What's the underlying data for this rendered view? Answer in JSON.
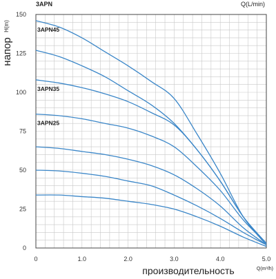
{
  "chart_data": {
    "type": "line",
    "title": "3APN",
    "x_unit_label_top": "Q(L/min)",
    "xlabel": "производительность",
    "x_unit_label": "Q(m³/h)",
    "ylabel": "напор",
    "y_unit_label": "H(m)",
    "xlim": [
      0,
      5
    ],
    "ylim": [
      0,
      150
    ],
    "x_ticks": [
      "0",
      "1.0",
      "2.0",
      "3.0",
      "4.0",
      "5.0"
    ],
    "y_ticks": [
      "0",
      "25",
      "50",
      "75",
      "100",
      "125",
      "150"
    ],
    "grid": true,
    "series_color": "#3a86c8",
    "axis_color": "#444444",
    "grid_color": "#c8c8c8",
    "series": [
      {
        "name": "3APN45",
        "points": [
          [
            0,
            146
          ],
          [
            0.5,
            142
          ],
          [
            1.0,
            135
          ],
          [
            1.5,
            126
          ],
          [
            2.0,
            117
          ],
          [
            2.5,
            107
          ],
          [
            3.0,
            96
          ],
          [
            3.5,
            73
          ],
          [
            4.0,
            48
          ],
          [
            4.5,
            20
          ],
          [
            5.0,
            2
          ]
        ]
      },
      {
        "name": "",
        "points": [
          [
            0,
            127
          ],
          [
            0.5,
            123
          ],
          [
            1.0,
            117
          ],
          [
            1.5,
            110
          ],
          [
            2.0,
            101
          ],
          [
            2.5,
            92
          ],
          [
            3.0,
            80
          ],
          [
            3.5,
            63
          ],
          [
            4.0,
            43
          ],
          [
            4.5,
            20
          ],
          [
            5.0,
            3
          ]
        ]
      },
      {
        "name": "3APN35",
        "points": [
          [
            0,
            108
          ],
          [
            0.5,
            106
          ],
          [
            1.0,
            103
          ],
          [
            1.5,
            99
          ],
          [
            2.0,
            94
          ],
          [
            2.5,
            87
          ],
          [
            3.0,
            79
          ],
          [
            3.5,
            63
          ],
          [
            4.0,
            43
          ],
          [
            4.5,
            20
          ],
          [
            5.0,
            3
          ]
        ]
      },
      {
        "name": "3APN25",
        "points": [
          [
            0,
            86
          ],
          [
            0.5,
            85
          ],
          [
            1.0,
            83
          ],
          [
            1.5,
            80
          ],
          [
            2.0,
            77
          ],
          [
            2.5,
            72
          ],
          [
            3.0,
            65
          ],
          [
            3.5,
            52
          ],
          [
            4.0,
            37
          ],
          [
            4.5,
            18
          ],
          [
            5.0,
            3
          ]
        ]
      },
      {
        "name": "",
        "points": [
          [
            0,
            65
          ],
          [
            0.5,
            64
          ],
          [
            1.0,
            62
          ],
          [
            1.5,
            60
          ],
          [
            2.0,
            57
          ],
          [
            2.5,
            53
          ],
          [
            3.0,
            47
          ],
          [
            3.5,
            38
          ],
          [
            4.0,
            27
          ],
          [
            4.5,
            13
          ],
          [
            5.0,
            2
          ]
        ]
      },
      {
        "name": "",
        "points": [
          [
            0,
            50
          ],
          [
            0.5,
            49.5
          ],
          [
            1.0,
            48
          ],
          [
            1.5,
            46
          ],
          [
            2.0,
            43
          ],
          [
            2.5,
            40
          ],
          [
            3.0,
            34
          ],
          [
            3.5,
            27
          ],
          [
            4.0,
            19
          ],
          [
            4.5,
            10
          ],
          [
            5.0,
            2
          ]
        ]
      },
      {
        "name": "",
        "points": [
          [
            0,
            34
          ],
          [
            0.5,
            34
          ],
          [
            1.0,
            33
          ],
          [
            1.5,
            32
          ],
          [
            2.0,
            30
          ],
          [
            2.5,
            28
          ],
          [
            3.0,
            25
          ],
          [
            3.5,
            20
          ],
          [
            4.0,
            14
          ],
          [
            4.5,
            7
          ],
          [
            5.0,
            1
          ]
        ]
      }
    ]
  }
}
